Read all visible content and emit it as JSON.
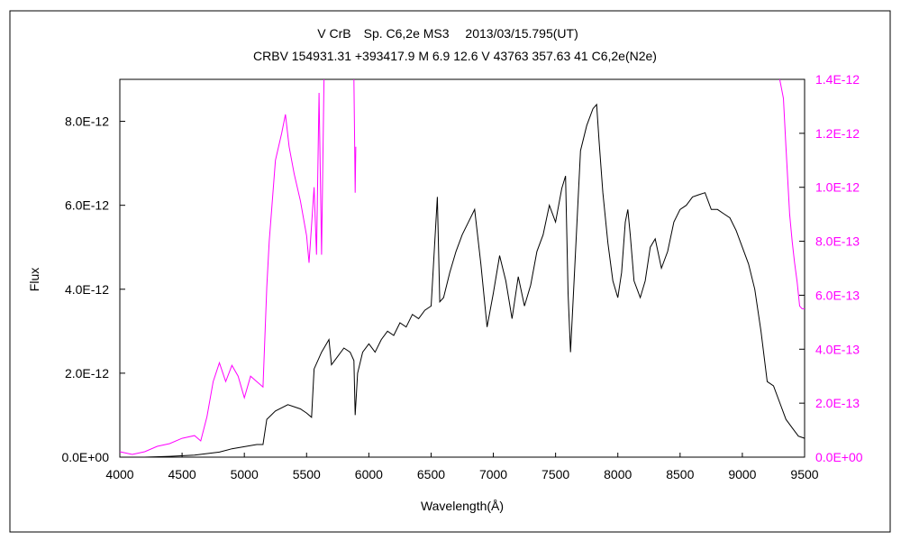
{
  "chart_data": {
    "type": "line",
    "title": "V CrB　Sp. C6,2e MS3　 2013/03/15.795(UT)",
    "subtitle": "CRBV 154931.31 +393417.9 M 6.9 12.6 V 43763 357.63 41 C6,2e(N2e)",
    "xlabel": "Wavelength(Å)",
    "ylabel": "Flux",
    "xlim": [
      4000,
      9500
    ],
    "ylim_left": [
      0,
      9e-12
    ],
    "ylim_right": [
      0,
      1.4e-12
    ],
    "x_ticks": [
      "4000",
      "4500",
      "5000",
      "5500",
      "6000",
      "6500",
      "7000",
      "7500",
      "8000",
      "8500",
      "9000",
      "9500"
    ],
    "y_left_ticks": [
      "0.0E+00",
      "2.0E-12",
      "4.0E-12",
      "6.0E-12",
      "8.0E-12"
    ],
    "y_right_ticks": [
      "0.0E+00",
      "2.0E-13",
      "4.0E-13",
      "6.0E-13",
      "8.0E-13",
      "1.0E-12",
      "1.2E-12",
      "1.4E-12"
    ],
    "colors": {
      "black_series": "#000000",
      "magenta_series": "#ff00ff",
      "frame": "#000000"
    },
    "series": [
      {
        "axis": "left",
        "color": "#000000",
        "points": [
          [
            4000,
            0.0
          ],
          [
            4200,
            0.0
          ],
          [
            4400,
            2e-14
          ],
          [
            4600,
            5e-14
          ],
          [
            4800,
            1.2e-13
          ],
          [
            4900,
            2e-13
          ],
          [
            5000,
            2.5e-13
          ],
          [
            5100,
            3e-13
          ],
          [
            5150,
            3e-13
          ],
          [
            5180,
            9e-13
          ],
          [
            5250,
            1.1e-12
          ],
          [
            5350,
            1.25e-12
          ],
          [
            5450,
            1.15e-12
          ],
          [
            5500,
            1.05e-12
          ],
          [
            5540,
            9.5e-13
          ],
          [
            5560,
            2.1e-12
          ],
          [
            5620,
            2.5e-12
          ],
          [
            5680,
            2.8e-12
          ],
          [
            5700,
            2.2e-12
          ],
          [
            5750,
            2.4e-12
          ],
          [
            5800,
            2.6e-12
          ],
          [
            5850,
            2.5e-12
          ],
          [
            5880,
            2.3e-12
          ],
          [
            5890,
            1e-12
          ],
          [
            5910,
            2e-12
          ],
          [
            5950,
            2.5e-12
          ],
          [
            6000,
            2.7e-12
          ],
          [
            6050,
            2.5e-12
          ],
          [
            6100,
            2.8e-12
          ],
          [
            6150,
            3e-12
          ],
          [
            6200,
            2.9e-12
          ],
          [
            6250,
            3.2e-12
          ],
          [
            6300,
            3.1e-12
          ],
          [
            6350,
            3.4e-12
          ],
          [
            6400,
            3.3e-12
          ],
          [
            6450,
            3.5e-12
          ],
          [
            6500,
            3.6e-12
          ],
          [
            6550,
            6.2e-12
          ],
          [
            6570,
            3.7e-12
          ],
          [
            6600,
            3.8e-12
          ],
          [
            6650,
            4.4e-12
          ],
          [
            6700,
            4.9e-12
          ],
          [
            6750,
            5.3e-12
          ],
          [
            6800,
            5.6e-12
          ],
          [
            6850,
            5.9e-12
          ],
          [
            6900,
            4.6e-12
          ],
          [
            6950,
            3.1e-12
          ],
          [
            7000,
            3.9e-12
          ],
          [
            7050,
            4.8e-12
          ],
          [
            7100,
            4.2e-12
          ],
          [
            7150,
            3.3e-12
          ],
          [
            7200,
            4.3e-12
          ],
          [
            7250,
            3.6e-12
          ],
          [
            7300,
            4.1e-12
          ],
          [
            7350,
            4.9e-12
          ],
          [
            7400,
            5.3e-12
          ],
          [
            7450,
            6e-12
          ],
          [
            7500,
            5.6e-12
          ],
          [
            7550,
            6.4e-12
          ],
          [
            7580,
            6.7e-12
          ],
          [
            7600,
            3.9e-12
          ],
          [
            7620,
            2.5e-12
          ],
          [
            7650,
            4.3e-12
          ],
          [
            7700,
            7.3e-12
          ],
          [
            7750,
            7.9e-12
          ],
          [
            7800,
            8.3e-12
          ],
          [
            7830,
            8.4e-12
          ],
          [
            7850,
            7.5e-12
          ],
          [
            7880,
            6.3e-12
          ],
          [
            7920,
            5.1e-12
          ],
          [
            7960,
            4.2e-12
          ],
          [
            8000,
            3.8e-12
          ],
          [
            8030,
            4.4e-12
          ],
          [
            8060,
            5.6e-12
          ],
          [
            8080,
            5.9e-12
          ],
          [
            8100,
            5.3e-12
          ],
          [
            8130,
            4.2e-12
          ],
          [
            8180,
            3.8e-12
          ],
          [
            8220,
            4.2e-12
          ],
          [
            8260,
            5e-12
          ],
          [
            8300,
            5.2e-12
          ],
          [
            8350,
            4.5e-12
          ],
          [
            8400,
            4.9e-12
          ],
          [
            8450,
            5.6e-12
          ],
          [
            8500,
            5.9e-12
          ],
          [
            8550,
            6e-12
          ],
          [
            8600,
            6.2e-12
          ],
          [
            8650,
            6.25e-12
          ],
          [
            8700,
            6.3e-12
          ],
          [
            8750,
            5.9e-12
          ],
          [
            8800,
            5.9e-12
          ],
          [
            8850,
            5.8e-12
          ],
          [
            8900,
            5.7e-12
          ],
          [
            8950,
            5.4e-12
          ],
          [
            9000,
            5e-12
          ],
          [
            9050,
            4.6e-12
          ],
          [
            9100,
            4e-12
          ],
          [
            9150,
            3e-12
          ],
          [
            9200,
            1.8e-12
          ],
          [
            9250,
            1.7e-12
          ],
          [
            9300,
            1.3e-12
          ],
          [
            9350,
            9e-13
          ],
          [
            9400,
            7e-13
          ],
          [
            9450,
            5e-13
          ],
          [
            9500,
            4.5e-13
          ]
        ]
      },
      {
        "axis": "right",
        "color": "#ff00ff",
        "points": [
          [
            4000,
            2e-14
          ],
          [
            4100,
            1e-14
          ],
          [
            4200,
            2e-14
          ],
          [
            4300,
            4e-14
          ],
          [
            4400,
            5e-14
          ],
          [
            4500,
            7e-14
          ],
          [
            4600,
            8e-14
          ],
          [
            4650,
            6e-14
          ],
          [
            4700,
            1.5e-13
          ],
          [
            4750,
            2.8e-13
          ],
          [
            4800,
            3.5e-13
          ],
          [
            4850,
            2.8e-13
          ],
          [
            4900,
            3.4e-13
          ],
          [
            4950,
            3e-13
          ],
          [
            5000,
            2.2e-13
          ],
          [
            5050,
            3e-13
          ],
          [
            5100,
            2.8e-13
          ],
          [
            5150,
            2.6e-13
          ],
          [
            5180,
            6.3e-13
          ],
          [
            5200,
            8e-13
          ],
          [
            5250,
            1.1e-12
          ],
          [
            5300,
            1.2e-12
          ],
          [
            5330,
            1.27e-12
          ],
          [
            5360,
            1.15e-12
          ],
          [
            5400,
            1.05e-12
          ],
          [
            5450,
            9.5e-13
          ],
          [
            5500,
            8.2e-13
          ],
          [
            5520,
            7.2e-13
          ],
          [
            5560,
            1e-12
          ],
          [
            5580,
            7.5e-13
          ],
          [
            5600,
            1.35e-12
          ],
          [
            5620,
            7.5e-13
          ],
          [
            5640,
            1.4e-12
          ]
        ]
      },
      {
        "axis": "right",
        "color": "#ff00ff",
        "points": [
          [
            5880,
            1.4e-12
          ],
          [
            5885,
            1.2e-12
          ],
          [
            5890,
            9.8e-13
          ],
          [
            5895,
            1.15e-12
          ]
        ]
      },
      {
        "axis": "right",
        "color": "#ff00ff",
        "points": [
          [
            9300,
            1.4e-12
          ],
          [
            9330,
            1.33e-12
          ],
          [
            9350,
            1.15e-12
          ],
          [
            9380,
            9e-13
          ],
          [
            9400,
            8e-13
          ],
          [
            9420,
            7.2e-13
          ],
          [
            9440,
            6.5e-13
          ],
          [
            9460,
            5.6e-13
          ],
          [
            9480,
            5.5e-13
          ],
          [
            9500,
            5.5e-13
          ]
        ]
      }
    ]
  }
}
